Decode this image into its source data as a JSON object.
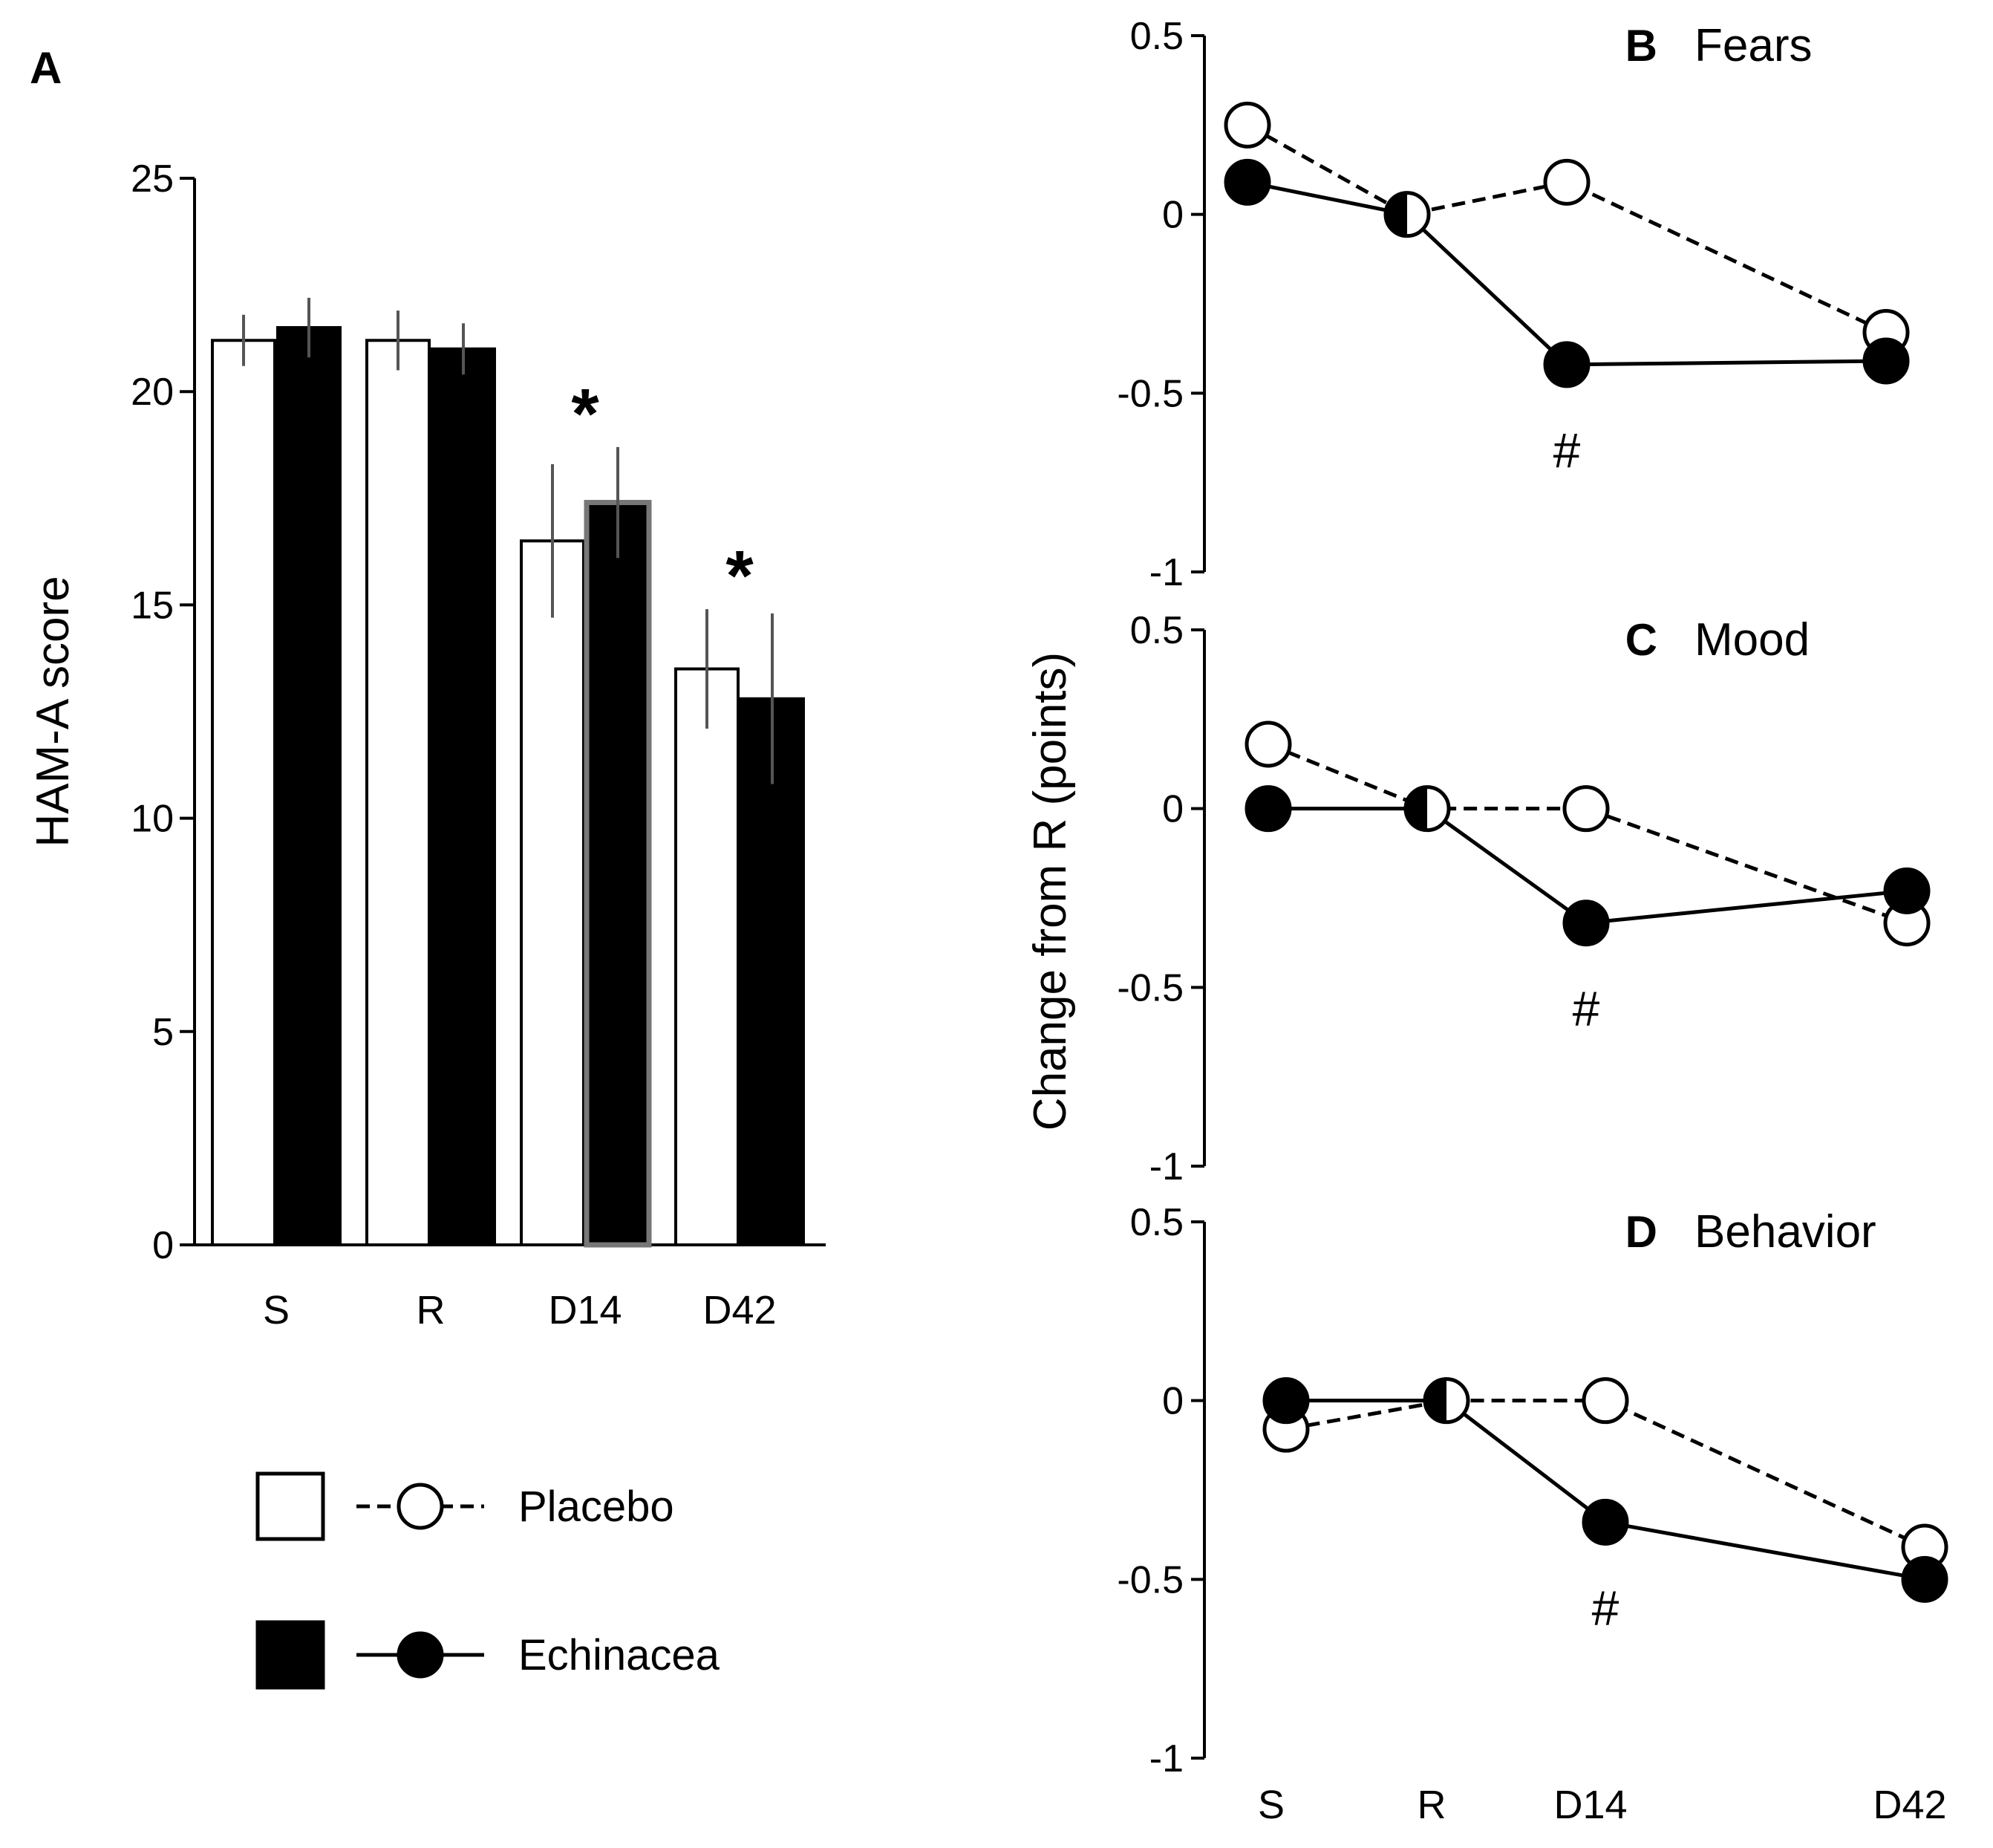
{
  "chart_data": [
    {
      "panel": "A",
      "type": "bar",
      "panel_label": "A",
      "ylabel": "HAM-A score",
      "ylim": [
        0,
        25
      ],
      "yticks": [
        0,
        5,
        10,
        15,
        20,
        25
      ],
      "categories": [
        "S",
        "R",
        "D14",
        "D42"
      ],
      "series": [
        {
          "name": "Placebo",
          "color": "#ffffff",
          "values": [
            21.2,
            21.2,
            16.5,
            13.5
          ],
          "errors": [
            0.6,
            0.7,
            1.8,
            1.4
          ]
        },
        {
          "name": "Echinacea",
          "color": "#000000",
          "values": [
            21.5,
            21.0,
            17.4,
            12.8
          ],
          "errors": [
            0.7,
            0.6,
            1.3,
            2.0
          ]
        }
      ],
      "annotations": [
        {
          "category": "D14",
          "text": "*"
        },
        {
          "category": "D42",
          "text": "*"
        }
      ]
    },
    {
      "panel": "B",
      "type": "line",
      "panel_label": "B",
      "title": "Fears",
      "ylim": [
        -1,
        0.5
      ],
      "yticks": [
        "0.5",
        "0",
        "-0.5",
        "-1"
      ],
      "x": [
        "S",
        "R",
        "D14",
        "D42"
      ],
      "series": [
        {
          "name": "Placebo",
          "values": [
            0.25,
            0.0,
            0.09,
            -0.33
          ]
        },
        {
          "name": "Echinacea",
          "values": [
            0.09,
            0.0,
            -0.42,
            -0.41
          ]
        }
      ],
      "annotations": [
        {
          "x": "D14",
          "text": "#"
        }
      ]
    },
    {
      "panel": "C",
      "type": "line",
      "panel_label": "C",
      "title": "Mood",
      "ylim": [
        -1,
        0.5
      ],
      "yticks": [
        "0.5",
        "0",
        "-0.5",
        "-1"
      ],
      "x": [
        "S",
        "R",
        "D14",
        "D42"
      ],
      "series": [
        {
          "name": "Placebo",
          "values": [
            0.18,
            0.0,
            0.0,
            -0.32
          ]
        },
        {
          "name": "Echinacea",
          "values": [
            0.0,
            0.0,
            -0.32,
            -0.23
          ]
        }
      ],
      "annotations": [
        {
          "x": "D14",
          "text": "#"
        }
      ]
    },
    {
      "panel": "D",
      "type": "line",
      "panel_label": "D",
      "title": "Behavior",
      "ylim": [
        -1,
        0.5
      ],
      "yticks": [
        "0.5",
        "0",
        "-0.5",
        "-1"
      ],
      "x": [
        "S",
        "R",
        "D14",
        "D42"
      ],
      "xticklabels": [
        "S",
        "R",
        "D14",
        "D42"
      ],
      "series": [
        {
          "name": "Placebo",
          "values": [
            -0.08,
            0.0,
            0.0,
            -0.41
          ]
        },
        {
          "name": "Echinacea",
          "values": [
            0.0,
            0.0,
            -0.34,
            -0.5
          ]
        }
      ],
      "annotations": [
        {
          "x": "D14",
          "text": "#"
        }
      ]
    }
  ],
  "shared": {
    "right_ylabel": "Change from R (points)"
  },
  "legend": {
    "items": [
      {
        "name": "Placebo",
        "fill": "#ffffff",
        "line": "dashed"
      },
      {
        "name": "Echinacea",
        "fill": "#000000",
        "line": "solid"
      }
    ]
  }
}
